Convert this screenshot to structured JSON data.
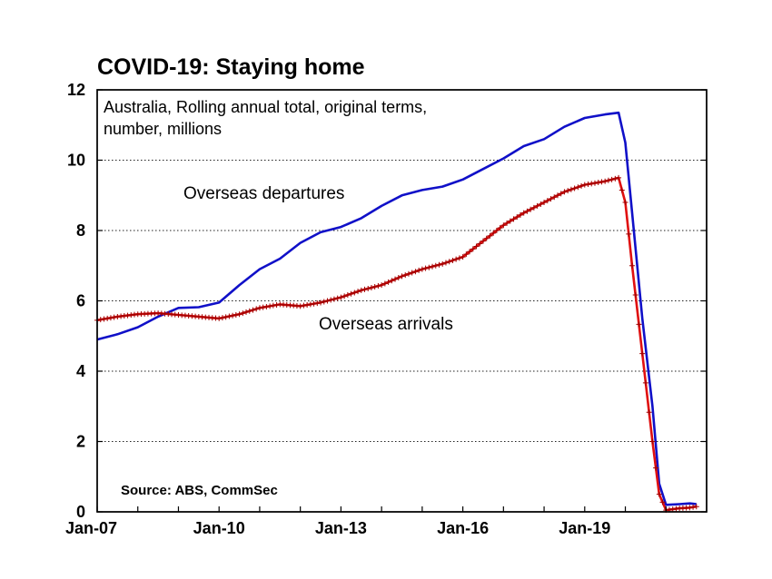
{
  "chart_data": {
    "type": "line",
    "title": "COVID-19: Staying home",
    "subtitle_lines": [
      "Australia, Rolling annual total, original terms,",
      "number, millions"
    ],
    "source": "Source: ABS, CommSec",
    "xlabel": "",
    "ylabel": "",
    "ylim": [
      0,
      12
    ],
    "yticks": [
      0,
      2,
      4,
      6,
      8,
      10,
      12
    ],
    "xlim": [
      "2007-01",
      "2022-01"
    ],
    "xticks": [
      {
        "value": "2007-01",
        "label": "Jan-07"
      },
      {
        "value": "2010-01",
        "label": "Jan-10"
      },
      {
        "value": "2013-01",
        "label": "Jan-13"
      },
      {
        "value": "2016-01",
        "label": "Jan-16"
      },
      {
        "value": "2019-01",
        "label": "Jan-19"
      }
    ],
    "grid": "horizontal dotted",
    "series": [
      {
        "name": "Overseas departures",
        "color": "#1010c8",
        "marker": "none",
        "points": [
          [
            "2007-01",
            4.9
          ],
          [
            "2007-07",
            5.05
          ],
          [
            "2008-01",
            5.25
          ],
          [
            "2008-07",
            5.55
          ],
          [
            "2009-01",
            5.8
          ],
          [
            "2009-07",
            5.82
          ],
          [
            "2010-01",
            5.95
          ],
          [
            "2010-07",
            6.45
          ],
          [
            "2011-01",
            6.9
          ],
          [
            "2011-07",
            7.2
          ],
          [
            "2012-01",
            7.65
          ],
          [
            "2012-07",
            7.95
          ],
          [
            "2013-01",
            8.1
          ],
          [
            "2013-07",
            8.35
          ],
          [
            "2014-01",
            8.7
          ],
          [
            "2014-07",
            9.0
          ],
          [
            "2015-01",
            9.15
          ],
          [
            "2015-07",
            9.25
          ],
          [
            "2016-01",
            9.45
          ],
          [
            "2016-07",
            9.75
          ],
          [
            "2017-01",
            10.05
          ],
          [
            "2017-07",
            10.4
          ],
          [
            "2018-01",
            10.6
          ],
          [
            "2018-07",
            10.95
          ],
          [
            "2019-01",
            11.2
          ],
          [
            "2019-07",
            11.3
          ],
          [
            "2019-11",
            11.35
          ],
          [
            "2020-01",
            10.5
          ],
          [
            "2020-03",
            8.5
          ],
          [
            "2020-06",
            5.5
          ],
          [
            "2020-09",
            3.0
          ],
          [
            "2020-11",
            0.8
          ],
          [
            "2021-01",
            0.2
          ],
          [
            "2021-05",
            0.22
          ],
          [
            "2021-08",
            0.24
          ],
          [
            "2021-10",
            0.22
          ]
        ]
      },
      {
        "name": "Overseas arrivals",
        "color": "#e01010",
        "marker": "plus",
        "points": [
          [
            "2007-01",
            5.45
          ],
          [
            "2007-07",
            5.55
          ],
          [
            "2008-01",
            5.62
          ],
          [
            "2008-07",
            5.65
          ],
          [
            "2009-01",
            5.6
          ],
          [
            "2009-07",
            5.55
          ],
          [
            "2010-01",
            5.5
          ],
          [
            "2010-07",
            5.62
          ],
          [
            "2011-01",
            5.8
          ],
          [
            "2011-07",
            5.9
          ],
          [
            "2012-01",
            5.85
          ],
          [
            "2012-07",
            5.95
          ],
          [
            "2013-01",
            6.1
          ],
          [
            "2013-07",
            6.3
          ],
          [
            "2014-01",
            6.45
          ],
          [
            "2014-07",
            6.7
          ],
          [
            "2015-01",
            6.9
          ],
          [
            "2015-07",
            7.05
          ],
          [
            "2016-01",
            7.25
          ],
          [
            "2016-07",
            7.7
          ],
          [
            "2017-01",
            8.15
          ],
          [
            "2017-07",
            8.5
          ],
          [
            "2018-01",
            8.8
          ],
          [
            "2018-07",
            9.1
          ],
          [
            "2019-01",
            9.3
          ],
          [
            "2019-07",
            9.4
          ],
          [
            "2019-11",
            9.5
          ],
          [
            "2020-01",
            8.8
          ],
          [
            "2020-03",
            7.0
          ],
          [
            "2020-06",
            4.5
          ],
          [
            "2020-09",
            2.0
          ],
          [
            "2020-11",
            0.5
          ],
          [
            "2021-01",
            0.05
          ],
          [
            "2021-05",
            0.1
          ],
          [
            "2021-08",
            0.12
          ],
          [
            "2021-10",
            0.15
          ]
        ]
      }
    ]
  }
}
